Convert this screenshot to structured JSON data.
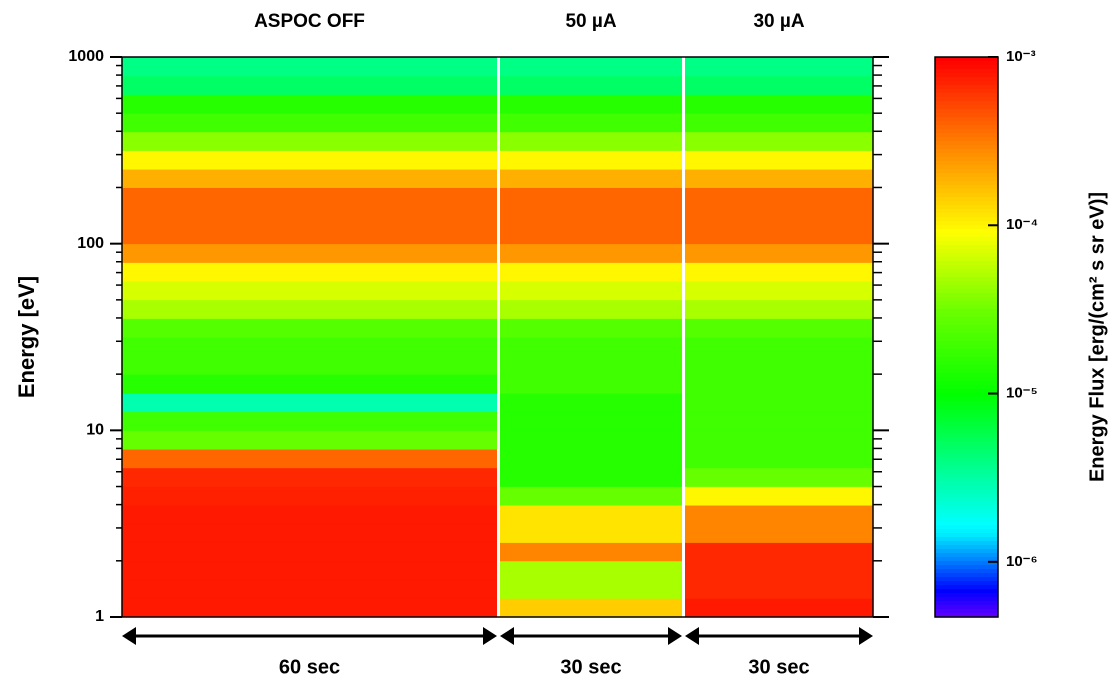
{
  "chart_data": {
    "type": "spectrogram",
    "ylabel": "Energy [eV]",
    "yscale": "log",
    "ylim": [
      1,
      1000
    ],
    "yticks": [
      1,
      10,
      100,
      1000
    ],
    "yticks_minor": [
      2,
      3,
      4,
      5,
      6,
      7,
      8,
      9,
      20,
      30,
      40,
      50,
      60,
      70,
      80,
      90,
      200,
      300,
      400,
      500,
      600,
      700,
      800,
      900
    ],
    "energy_bins": [
      1,
      1.26,
      1.58,
      2,
      2.51,
      3.16,
      3.98,
      5.01,
      6.31,
      7.94,
      10,
      12.6,
      15.8,
      20,
      25.1,
      31.6,
      39.8,
      50.1,
      63.1,
      79.4,
      100,
      126,
      158,
      200,
      251,
      316,
      398,
      501,
      631,
      794,
      1000
    ],
    "segments": [
      {
        "title": "ASPOC OFF",
        "duration": "60 sec",
        "values": [
          0.0008,
          0.0008,
          0.0008,
          0.0008,
          0.0008,
          0.0008,
          0.00075,
          0.0007,
          0.0004,
          3e-05,
          2e-05,
          3e-06,
          1.5e-05,
          2e-05,
          2e-05,
          2.5e-05,
          5e-05,
          7e-05,
          0.0001,
          0.00025,
          0.0004,
          0.0004,
          0.0004,
          0.0002,
          0.0001,
          4e-05,
          2e-05,
          1.5e-05,
          5e-06,
          4e-06
        ]
      },
      {
        "title": "50 µA",
        "duration": "30 sec",
        "values": [
          0.00015,
          5e-05,
          5e-05,
          0.0003,
          0.00012,
          0.00012,
          3e-05,
          1.5e-05,
          1.5e-05,
          1.5e-05,
          1.5e-05,
          1.5e-05,
          2e-05,
          2e-05,
          2e-05,
          2.5e-05,
          5e-05,
          7e-05,
          0.0001,
          0.00025,
          0.0004,
          0.0004,
          0.0004,
          0.0002,
          0.0001,
          4e-05,
          2e-05,
          1.5e-05,
          5e-06,
          4e-06
        ]
      },
      {
        "title": "30 µA",
        "duration": "30 sec",
        "values": [
          0.0008,
          0.0007,
          0.0007,
          0.0007,
          0.0003,
          0.0003,
          0.0001,
          3e-05,
          2e-05,
          2e-05,
          2e-05,
          2e-05,
          2e-05,
          2e-05,
          2e-05,
          2.5e-05,
          5e-05,
          7e-05,
          0.0001,
          0.00025,
          0.0004,
          0.0004,
          0.0004,
          0.0002,
          0.0001,
          4e-05,
          2e-05,
          1.5e-05,
          5e-06,
          4e-06
        ]
      }
    ],
    "colorbar": {
      "label": "Energy Flux [erg/(cm² s sr eV)]",
      "scale": "log",
      "lim": [
        4.7e-07,
        0.001
      ],
      "ticks": [
        {
          "value": 0.001,
          "label": "10⁻³"
        },
        {
          "value": 0.0001,
          "label": "10⁻⁴"
        },
        {
          "value": 1e-05,
          "label": "10⁻⁵"
        },
        {
          "value": 1e-06,
          "label": "10⁻⁶"
        }
      ]
    }
  }
}
